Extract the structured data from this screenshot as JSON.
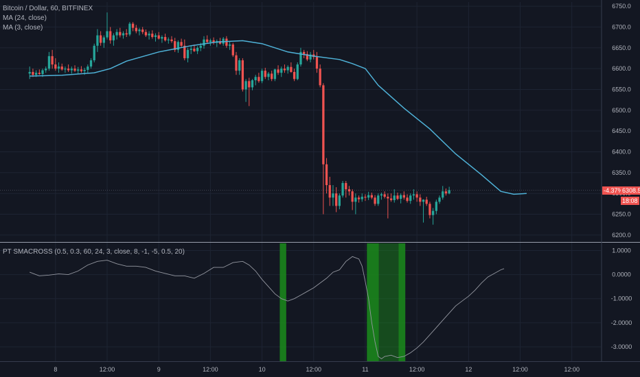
{
  "legend": {
    "symbol": "Bitcoin / Dollar, 60, BITFINEX",
    "ma24": "MA (24, close)",
    "ma3": "MA (3, close)",
    "indicator": "PT SMACROSS (0.5, 0.3, 60, 24, 3, close, 8, -1, -5, 0.5, 20)"
  },
  "price_tag": {
    "change": "-4.37%",
    "price": "6308.5",
    "countdown": "18:08",
    "color": "#ef5350"
  },
  "colors": {
    "up": "#26a69a",
    "down": "#ef5350",
    "ma": "#4fb3d9",
    "osc": "#9598a1",
    "highlight": "#1b8c1b",
    "bg": "#131722",
    "grid": "#1e2433"
  },
  "chart_data": [
    {
      "type": "candlestick",
      "title": "Bitcoin / Dollar, 60, BITFINEX",
      "ylim": [
        6185,
        6760
      ],
      "y_ticks": [
        "6750.0",
        "6700.0",
        "6650.0",
        "6600.0",
        "6550.0",
        "6500.0",
        "6450.0",
        "6400.0",
        "6350.0",
        "6300.0",
        "6250.0",
        "6200.0"
      ],
      "x_ticks": [
        {
          "label": "8",
          "t": 8
        },
        {
          "label": "12:00",
          "t": 24
        },
        {
          "label": "9",
          "t": 40
        },
        {
          "label": "12:00",
          "t": 56
        },
        {
          "label": "10",
          "t": 72
        },
        {
          "label": "12:00",
          "t": 88
        },
        {
          "label": "11",
          "t": 104
        },
        {
          "label": "12:00",
          "t": 120
        },
        {
          "label": "12",
          "t": 136
        },
        {
          "label": "12:00",
          "t": 152
        },
        {
          "label": "12:00",
          "t": 168
        }
      ],
      "candles": [
        [
          6588,
          6605,
          6575,
          6592
        ],
        [
          6592,
          6600,
          6580,
          6585
        ],
        [
          6585,
          6596,
          6580,
          6590
        ],
        [
          6590,
          6598,
          6585,
          6587
        ],
        [
          6587,
          6600,
          6580,
          6596
        ],
        [
          6596,
          6605,
          6590,
          6600
        ],
        [
          6600,
          6640,
          6595,
          6630
        ],
        [
          6630,
          6645,
          6600,
          6610
        ],
        [
          6610,
          6625,
          6595,
          6600
        ],
        [
          6600,
          6615,
          6590,
          6605
        ],
        [
          6605,
          6612,
          6595,
          6598
        ],
        [
          6598,
          6605,
          6590,
          6600
        ],
        [
          6600,
          6610,
          6592,
          6596
        ],
        [
          6596,
          6605,
          6588,
          6600
        ],
        [
          6600,
          6608,
          6592,
          6595
        ],
        [
          6595,
          6604,
          6588,
          6598
        ],
        [
          6598,
          6606,
          6590,
          6594
        ],
        [
          6594,
          6602,
          6585,
          6597
        ],
        [
          6597,
          6610,
          6590,
          6605
        ],
        [
          6605,
          6625,
          6600,
          6620
        ],
        [
          6620,
          6660,
          6615,
          6655
        ],
        [
          6655,
          6695,
          6640,
          6680
        ],
        [
          6680,
          6690,
          6655,
          6662
        ],
        [
          6662,
          6680,
          6650,
          6675
        ],
        [
          6675,
          6735,
          6670,
          6690
        ],
        [
          6690,
          6700,
          6660,
          6668
        ],
        [
          6668,
          6685,
          6655,
          6680
        ],
        [
          6680,
          6695,
          6670,
          6688
        ],
        [
          6688,
          6698,
          6675,
          6680
        ],
        [
          6680,
          6690,
          6672,
          6685
        ],
        [
          6685,
          6695,
          6676,
          6682
        ],
        [
          6682,
          6712,
          6678,
          6708
        ],
        [
          6708,
          6712,
          6690,
          6698
        ],
        [
          6698,
          6705,
          6685,
          6690
        ],
        [
          6690,
          6698,
          6680,
          6694
        ],
        [
          6694,
          6700,
          6683,
          6688
        ],
        [
          6688,
          6694,
          6676,
          6680
        ],
        [
          6680,
          6690,
          6670,
          6684
        ],
        [
          6684,
          6692,
          6672,
          6676
        ],
        [
          6676,
          6685,
          6665,
          6680
        ],
        [
          6680,
          6688,
          6670,
          6672
        ],
        [
          6672,
          6680,
          6662,
          6676
        ],
        [
          6676,
          6684,
          6665,
          6668
        ],
        [
          6668,
          6675,
          6660,
          6670
        ],
        [
          6670,
          6678,
          6662,
          6666
        ],
        [
          6666,
          6674,
          6640,
          6645
        ],
        [
          6645,
          6668,
          6638,
          6664
        ],
        [
          6664,
          6672,
          6650,
          6655
        ],
        [
          6655,
          6670,
          6620,
          6625
        ],
        [
          6625,
          6650,
          6615,
          6645
        ],
        [
          6645,
          6655,
          6635,
          6648
        ],
        [
          6648,
          6658,
          6640,
          6642
        ],
        [
          6642,
          6654,
          6635,
          6650
        ],
        [
          6650,
          6662,
          6642,
          6655
        ],
        [
          6655,
          6678,
          6648,
          6670
        ],
        [
          6670,
          6680,
          6660,
          6664
        ],
        [
          6664,
          6672,
          6655,
          6668
        ],
        [
          6668,
          6675,
          6658,
          6662
        ],
        [
          6662,
          6670,
          6652,
          6666
        ],
        [
          6666,
          6674,
          6658,
          6660
        ],
        [
          6660,
          6676,
          6655,
          6672
        ],
        [
          6672,
          6678,
          6650,
          6655
        ],
        [
          6655,
          6665,
          6645,
          6658
        ],
        [
          6658,
          6662,
          6628,
          6632
        ],
        [
          6632,
          6640,
          6585,
          6595
        ],
        [
          6595,
          6625,
          6585,
          6620
        ],
        [
          6620,
          6625,
          6545,
          6550
        ],
        [
          6550,
          6575,
          6520,
          6570
        ],
        [
          6570,
          6578,
          6510,
          6555
        ],
        [
          6555,
          6575,
          6548,
          6572
        ],
        [
          6572,
          6585,
          6560,
          6580
        ],
        [
          6580,
          6590,
          6566,
          6570
        ],
        [
          6570,
          6600,
          6565,
          6595
        ],
        [
          6595,
          6602,
          6575,
          6580
        ],
        [
          6580,
          6592,
          6572,
          6588
        ],
        [
          6588,
          6595,
          6570,
          6575
        ],
        [
          6575,
          6600,
          6570,
          6598
        ],
        [
          6598,
          6608,
          6585,
          6590
        ],
        [
          6590,
          6605,
          6580,
          6600
        ],
        [
          6600,
          6610,
          6590,
          6596
        ],
        [
          6596,
          6608,
          6588,
          6604
        ],
        [
          6604,
          6615,
          6590,
          6592
        ],
        [
          6592,
          6600,
          6570,
          6575
        ],
        [
          6575,
          6615,
          6572,
          6610
        ],
        [
          6610,
          6650,
          6605,
          6640
        ],
        [
          6640,
          6645,
          6625,
          6635
        ],
        [
          6635,
          6642,
          6618,
          6622
        ],
        [
          6622,
          6640,
          6615,
          6634
        ],
        [
          6634,
          6645,
          6622,
          6628
        ],
        [
          6628,
          6640,
          6590,
          6600
        ],
        [
          6600,
          6610,
          6555,
          6560
        ],
        [
          6560,
          6565,
          6250,
          6370
        ],
        [
          6370,
          6385,
          6300,
          6320
        ],
        [
          6320,
          6340,
          6270,
          6290
        ],
        [
          6290,
          6320,
          6270,
          6300
        ],
        [
          6300,
          6315,
          6255,
          6270
        ],
        [
          6270,
          6300,
          6262,
          6295
        ],
        [
          6295,
          6330,
          6290,
          6325
        ],
        [
          6325,
          6330,
          6290,
          6310
        ],
        [
          6310,
          6318,
          6295,
          6305
        ],
        [
          6305,
          6310,
          6260,
          6280
        ],
        [
          6280,
          6300,
          6250,
          6290
        ],
        [
          6290,
          6295,
          6278,
          6286
        ],
        [
          6286,
          6300,
          6280,
          6292
        ],
        [
          6292,
          6298,
          6282,
          6290
        ],
        [
          6290,
          6304,
          6284,
          6296
        ],
        [
          6296,
          6302,
          6286,
          6290
        ],
        [
          6290,
          6296,
          6270,
          6275
        ],
        [
          6275,
          6300,
          6270,
          6295
        ],
        [
          6295,
          6302,
          6285,
          6298
        ],
        [
          6298,
          6305,
          6288,
          6292
        ],
        [
          6292,
          6300,
          6240,
          6288
        ],
        [
          6288,
          6300,
          6280,
          6284
        ],
        [
          6284,
          6310,
          6278,
          6295
        ],
        [
          6295,
          6302,
          6284,
          6287
        ],
        [
          6287,
          6300,
          6276,
          6296
        ],
        [
          6296,
          6305,
          6285,
          6290
        ],
        [
          6290,
          6298,
          6278,
          6282
        ],
        [
          6282,
          6300,
          6275,
          6295
        ],
        [
          6295,
          6310,
          6285,
          6298
        ],
        [
          6298,
          6305,
          6280,
          6290
        ],
        [
          6290,
          6298,
          6270,
          6280
        ],
        [
          6280,
          6286,
          6230,
          6285
        ],
        [
          6285,
          6292,
          6270,
          6275
        ],
        [
          6275,
          6280,
          6240,
          6248
        ],
        [
          6248,
          6265,
          6225,
          6258
        ],
        [
          6258,
          6285,
          6250,
          6280
        ],
        [
          6280,
          6295,
          6275,
          6290
        ],
        [
          6290,
          6318,
          6285,
          6305
        ],
        [
          6305,
          6312,
          6295,
          6300
        ],
        [
          6300,
          6316,
          6298,
          6308
        ]
      ],
      "ma24": [
        [
          0,
          6582
        ],
        [
          10,
          6584
        ],
        [
          20,
          6590
        ],
        [
          25,
          6600
        ],
        [
          30,
          6618
        ],
        [
          40,
          6640
        ],
        [
          50,
          6655
        ],
        [
          58,
          6664
        ],
        [
          66,
          6667
        ],
        [
          72,
          6660
        ],
        [
          80,
          6640
        ],
        [
          88,
          6630
        ],
        [
          96,
          6622
        ],
        [
          100,
          6612
        ],
        [
          104,
          6600
        ],
        [
          108,
          6560
        ],
        [
          116,
          6505
        ],
        [
          124,
          6455
        ],
        [
          132,
          6395
        ],
        [
          140,
          6345
        ],
        [
          146,
          6305
        ],
        [
          150,
          6298
        ],
        [
          154,
          6300
        ]
      ]
    },
    {
      "type": "line",
      "title": "PT SMACROSS (0.5, 0.3, 60, 24, 3, close, 8, -1, -5, 0.5, 20)",
      "ylim": [
        -3.6,
        1.3
      ],
      "y_ticks": [
        "1.0000",
        "0.0000",
        "-1.0000",
        "-2.0000",
        "-3.0000"
      ],
      "series": [
        {
          "values": [
            [
              0,
              0.1
            ],
            [
              3,
              -0.05
            ],
            [
              6,
              -0.02
            ],
            [
              9,
              0.03
            ],
            [
              12,
              0.0
            ],
            [
              15,
              0.15
            ],
            [
              18,
              0.4
            ],
            [
              21,
              0.55
            ],
            [
              24,
              0.6
            ],
            [
              27,
              0.45
            ],
            [
              30,
              0.35
            ],
            [
              33,
              0.35
            ],
            [
              36,
              0.3
            ],
            [
              39,
              0.15
            ],
            [
              42,
              0.05
            ],
            [
              45,
              -0.05
            ],
            [
              48,
              -0.05
            ],
            [
              51,
              -0.15
            ],
            [
              54,
              0.05
            ],
            [
              57,
              0.3
            ],
            [
              60,
              0.3
            ],
            [
              63,
              0.5
            ],
            [
              66,
              0.55
            ],
            [
              68,
              0.4
            ],
            [
              70,
              0.15
            ],
            [
              72,
              -0.2
            ],
            [
              74,
              -0.5
            ],
            [
              76,
              -0.8
            ],
            [
              78,
              -1.0
            ],
            [
              80,
              -1.1
            ],
            [
              82,
              -1.0
            ],
            [
              84,
              -0.85
            ],
            [
              86,
              -0.7
            ],
            [
              88,
              -0.55
            ],
            [
              90,
              -0.35
            ],
            [
              92,
              -0.15
            ],
            [
              94,
              0.1
            ],
            [
              96,
              0.2
            ],
            [
              98,
              0.55
            ],
            [
              100,
              0.75
            ],
            [
              102,
              0.65
            ],
            [
              103,
              0.35
            ],
            [
              104,
              -0.3
            ],
            [
              105,
              -1.0
            ],
            [
              106,
              -2.0
            ],
            [
              107,
              -2.8
            ],
            [
              108,
              -3.4
            ],
            [
              109,
              -3.5
            ],
            [
              110,
              -3.4
            ],
            [
              112,
              -3.35
            ],
            [
              114,
              -3.45
            ],
            [
              116,
              -3.4
            ],
            [
              118,
              -3.25
            ],
            [
              120,
              -3.05
            ],
            [
              122,
              -2.8
            ],
            [
              124,
              -2.5
            ],
            [
              126,
              -2.2
            ],
            [
              128,
              -1.9
            ],
            [
              130,
              -1.6
            ],
            [
              132,
              -1.3
            ],
            [
              134,
              -1.1
            ],
            [
              136,
              -0.9
            ],
            [
              138,
              -0.65
            ],
            [
              140,
              -0.35
            ],
            [
              142,
              -0.1
            ],
            [
              144,
              0.05
            ],
            [
              146,
              0.2
            ],
            [
              147,
              0.25
            ]
          ]
        }
      ],
      "highlight_bands": [
        [
          77.5,
          79.5
        ],
        [
          104.5,
          108.2
        ],
        [
          108.2,
          114.3
        ],
        [
          114.3,
          116.4
        ]
      ]
    }
  ]
}
